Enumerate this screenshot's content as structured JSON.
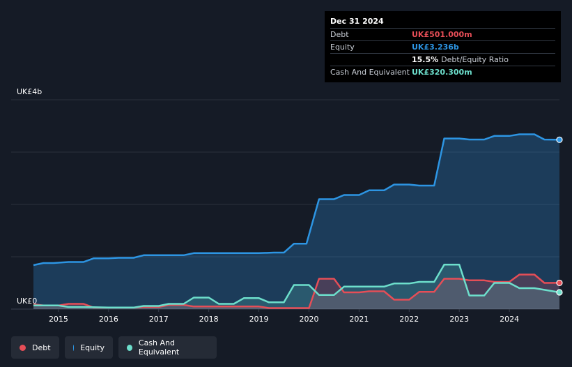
{
  "tooltip": {
    "date": "Dec 31 2024",
    "debt_label": "Debt",
    "debt_value": "UK£501.000m",
    "equity_label": "Equity",
    "equity_value": "UK£3.236b",
    "ratio_value": "15.5%",
    "ratio_label": "Debt/Equity Ratio",
    "cash_label": "Cash And Equivalent",
    "cash_value": "UK£320.300m"
  },
  "legend": {
    "debt": "Debt",
    "equity": "Equity",
    "cash": "Cash And Equivalent"
  },
  "colors": {
    "debt": "#e64e57",
    "equity": "#2d95e3",
    "cash": "#6ddfcc",
    "background": "#151b26"
  },
  "chart_data": {
    "type": "area",
    "y_unit": "UK£b",
    "ylim": [
      0,
      4
    ],
    "y_tick_labels": [
      "UK£0",
      "UK£4b"
    ],
    "x_tick_labels": [
      "2015",
      "2016",
      "2017",
      "2018",
      "2019",
      "2020",
      "2021",
      "2022",
      "2023",
      "2024"
    ],
    "xlim": [
      2014.5,
      2025.0
    ],
    "series": [
      {
        "name": "Equity",
        "points": [
          [
            2014.5,
            0.84
          ],
          [
            2014.7,
            0.88
          ],
          [
            2014.9,
            0.88
          ],
          [
            2015.2,
            0.9
          ],
          [
            2015.5,
            0.9
          ],
          [
            2015.7,
            0.97
          ],
          [
            2016.0,
            0.97
          ],
          [
            2016.2,
            0.98
          ],
          [
            2016.5,
            0.98
          ],
          [
            2016.7,
            1.03
          ],
          [
            2017.0,
            1.03
          ],
          [
            2017.5,
            1.03
          ],
          [
            2017.7,
            1.07
          ],
          [
            2018.0,
            1.07
          ],
          [
            2018.5,
            1.07
          ],
          [
            2019.0,
            1.07
          ],
          [
            2019.3,
            1.08
          ],
          [
            2019.5,
            1.08
          ],
          [
            2019.7,
            1.25
          ],
          [
            2019.95,
            1.25
          ],
          [
            2020.2,
            2.1
          ],
          [
            2020.5,
            2.1
          ],
          [
            2020.7,
            2.18
          ],
          [
            2021.0,
            2.18
          ],
          [
            2021.2,
            2.27
          ],
          [
            2021.5,
            2.27
          ],
          [
            2021.7,
            2.38
          ],
          [
            2022.0,
            2.38
          ],
          [
            2022.2,
            2.36
          ],
          [
            2022.5,
            2.36
          ],
          [
            2022.7,
            3.26
          ],
          [
            2023.0,
            3.26
          ],
          [
            2023.2,
            3.24
          ],
          [
            2023.5,
            3.24
          ],
          [
            2023.7,
            3.31
          ],
          [
            2024.0,
            3.31
          ],
          [
            2024.2,
            3.34
          ],
          [
            2024.5,
            3.34
          ],
          [
            2024.7,
            3.24
          ],
          [
            2025.0,
            3.236
          ]
        ]
      },
      {
        "name": "Debt",
        "points": [
          [
            2014.5,
            0.09
          ],
          [
            2014.7,
            0.07
          ],
          [
            2015.0,
            0.07
          ],
          [
            2015.2,
            0.1
          ],
          [
            2015.5,
            0.1
          ],
          [
            2015.7,
            0.03
          ],
          [
            2016.0,
            0.03
          ],
          [
            2016.5,
            0.03
          ],
          [
            2016.7,
            0.04
          ],
          [
            2017.0,
            0.04
          ],
          [
            2017.2,
            0.08
          ],
          [
            2017.5,
            0.08
          ],
          [
            2017.7,
            0.05
          ],
          [
            2018.0,
            0.05
          ],
          [
            2018.5,
            0.05
          ],
          [
            2019.0,
            0.05
          ],
          [
            2019.2,
            0.02
          ],
          [
            2019.5,
            0.02
          ],
          [
            2020.0,
            0.02
          ],
          [
            2020.2,
            0.58
          ],
          [
            2020.5,
            0.58
          ],
          [
            2020.7,
            0.32
          ],
          [
            2021.0,
            0.32
          ],
          [
            2021.2,
            0.34
          ],
          [
            2021.5,
            0.34
          ],
          [
            2021.7,
            0.18
          ],
          [
            2022.0,
            0.18
          ],
          [
            2022.2,
            0.33
          ],
          [
            2022.5,
            0.33
          ],
          [
            2022.7,
            0.58
          ],
          [
            2023.0,
            0.58
          ],
          [
            2023.2,
            0.55
          ],
          [
            2023.5,
            0.55
          ],
          [
            2023.7,
            0.52
          ],
          [
            2024.0,
            0.52
          ],
          [
            2024.2,
            0.66
          ],
          [
            2024.5,
            0.66
          ],
          [
            2024.7,
            0.5
          ],
          [
            2025.0,
            0.501
          ]
        ]
      },
      {
        "name": "Cash And Equivalent",
        "points": [
          [
            2014.5,
            0.07
          ],
          [
            2014.7,
            0.07
          ],
          [
            2015.0,
            0.07
          ],
          [
            2015.2,
            0.04
          ],
          [
            2015.5,
            0.04
          ],
          [
            2016.0,
            0.03
          ],
          [
            2016.5,
            0.03
          ],
          [
            2016.7,
            0.06
          ],
          [
            2017.0,
            0.06
          ],
          [
            2017.2,
            0.1
          ],
          [
            2017.5,
            0.1
          ],
          [
            2017.7,
            0.22
          ],
          [
            2018.0,
            0.22
          ],
          [
            2018.2,
            0.1
          ],
          [
            2018.5,
            0.1
          ],
          [
            2018.7,
            0.21
          ],
          [
            2019.0,
            0.21
          ],
          [
            2019.2,
            0.13
          ],
          [
            2019.5,
            0.13
          ],
          [
            2019.7,
            0.46
          ],
          [
            2020.0,
            0.46
          ],
          [
            2020.2,
            0.27
          ],
          [
            2020.5,
            0.27
          ],
          [
            2020.7,
            0.43
          ],
          [
            2021.0,
            0.43
          ],
          [
            2021.5,
            0.43
          ],
          [
            2021.7,
            0.49
          ],
          [
            2022.0,
            0.49
          ],
          [
            2022.2,
            0.52
          ],
          [
            2022.5,
            0.52
          ],
          [
            2022.7,
            0.85
          ],
          [
            2023.0,
            0.85
          ],
          [
            2023.2,
            0.26
          ],
          [
            2023.5,
            0.26
          ],
          [
            2023.7,
            0.5
          ],
          [
            2024.0,
            0.5
          ],
          [
            2024.2,
            0.4
          ],
          [
            2024.5,
            0.4
          ],
          [
            2025.0,
            0.32
          ]
        ]
      }
    ],
    "grid": true,
    "legend_position": "bottom-left"
  }
}
